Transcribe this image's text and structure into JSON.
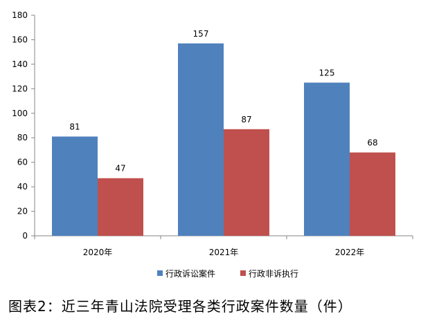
{
  "chart_data": {
    "type": "bar",
    "title": "图表2：近三年青山法院受理各类行政案件数量（件）",
    "categories": [
      "2020年",
      "2021年",
      "2022年"
    ],
    "series": [
      {
        "name": "行政诉讼案件",
        "values": [
          81,
          157,
          125
        ],
        "color": "#4F81BD"
      },
      {
        "name": "行政非诉执行",
        "values": [
          47,
          87,
          68
        ],
        "color": "#C0504D"
      }
    ],
    "ylim": [
      0,
      180
    ],
    "yticks": [
      0,
      20,
      40,
      60,
      80,
      100,
      120,
      140,
      160,
      180
    ],
    "xlabel": "",
    "ylabel": "",
    "grid": false,
    "legend": "bottom"
  }
}
